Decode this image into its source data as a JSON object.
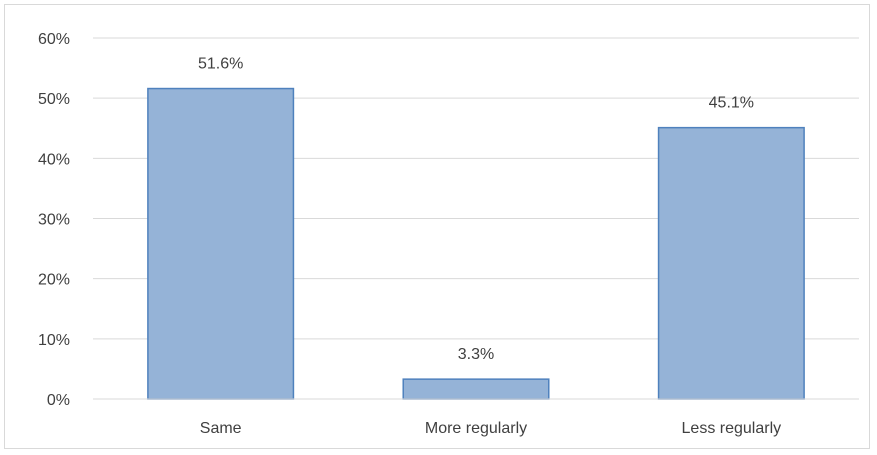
{
  "chart_data": {
    "type": "bar",
    "categories": [
      "Same",
      "More regularly",
      "Less regularly"
    ],
    "values": [
      51.6,
      3.3,
      45.1
    ],
    "data_labels": [
      "51.6%",
      "3.3%",
      "45.1%"
    ],
    "ylim": [
      0,
      60
    ],
    "yticks": [
      0,
      10,
      20,
      30,
      40,
      50,
      60
    ],
    "ytick_labels": [
      "0%",
      "10%",
      "20%",
      "30%",
      "40%",
      "50%",
      "60%"
    ],
    "grid": true,
    "legend": "none",
    "bar_color": "#95b3d7",
    "bar_edge_color": "#4f81bd",
    "grid_color": "#d9d9d9"
  }
}
